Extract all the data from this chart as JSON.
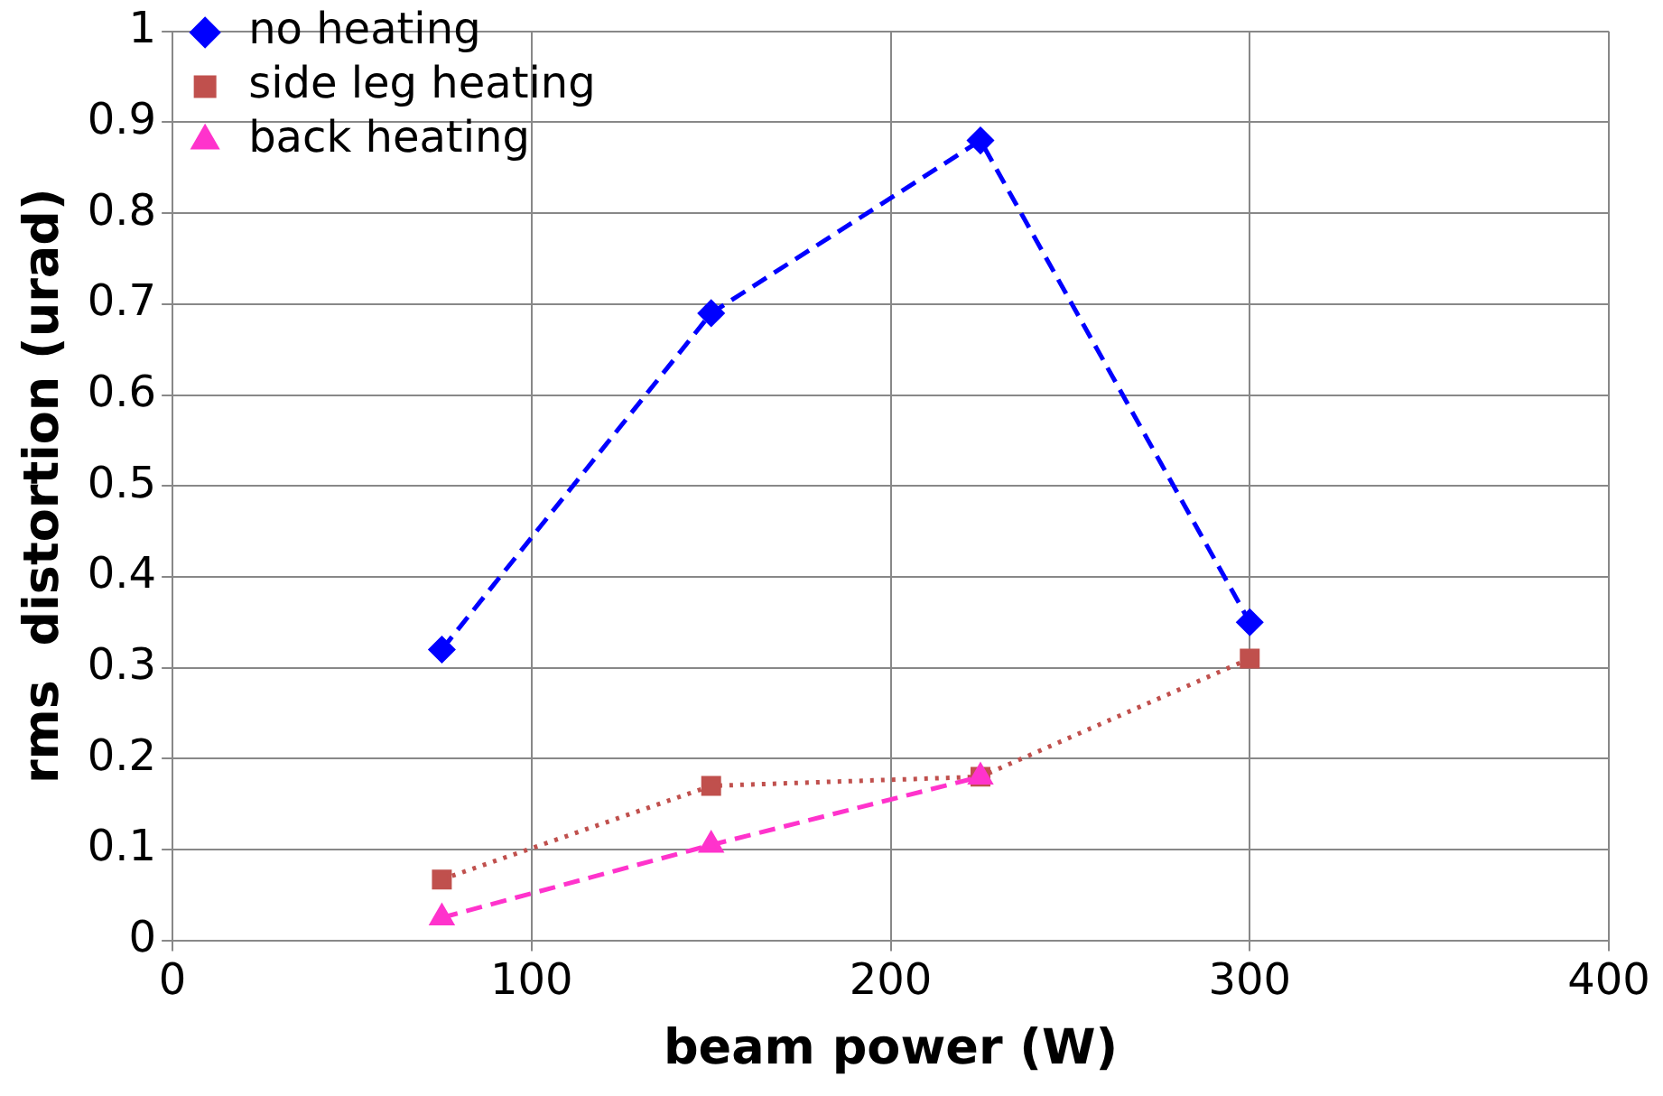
{
  "chart_data": {
    "type": "line",
    "xlabel": "beam power (W)",
    "ylabel": "rms  distortion (urad)",
    "x": [
      75,
      150,
      225,
      300
    ],
    "series": [
      {
        "name": "no heating",
        "color": "#0000ff",
        "values": [
          0.32,
          0.69,
          0.88,
          0.35
        ],
        "marker": "diamond",
        "line_style": "dashed"
      },
      {
        "name": "side leg heating",
        "color": "#c0504d",
        "values": [
          0.067,
          0.17,
          0.18,
          0.31
        ],
        "marker": "square",
        "line_style": "dotted"
      },
      {
        "name": "back heating",
        "color": "#ff33cc",
        "values": [
          0.025,
          0.105,
          0.18,
          null
        ],
        "marker": "triangle",
        "line_style": "dashed"
      }
    ],
    "xlim": [
      0,
      400
    ],
    "xticks": [
      0,
      100,
      200,
      300,
      400
    ],
    "ylim": [
      0,
      1
    ],
    "yticks": [
      0,
      0.1,
      0.2,
      0.3,
      0.4,
      0.5,
      0.6,
      0.7,
      0.8,
      0.9,
      1
    ],
    "grid": true,
    "legend": "top left"
  }
}
